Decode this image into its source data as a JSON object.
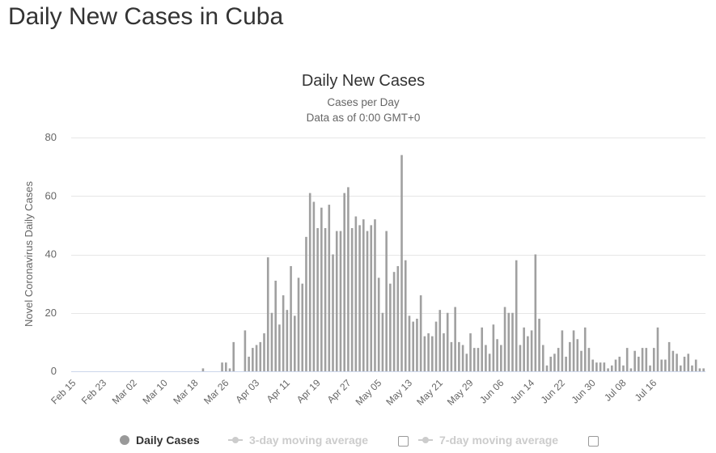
{
  "page": {
    "title": "Daily New Cases in Cuba"
  },
  "chart_data": {
    "type": "bar",
    "title": "Daily New Cases",
    "subtitle_lines": [
      "Cases per Day",
      "Data as of 0:00 GMT+0"
    ],
    "ylabel": "Novel Coronavirus Daily Cases",
    "xlabel": "",
    "ylim": [
      0,
      80
    ],
    "yticks": [
      0,
      20,
      40,
      60,
      80
    ],
    "grid": true,
    "bar_color": "#a0a0a0",
    "x_tick_labels": [
      "Feb 15",
      "Feb 23",
      "Mar 02",
      "Mar 10",
      "Mar 18",
      "Mar 26",
      "Apr 03",
      "Apr 11",
      "Apr 19",
      "Apr 27",
      "May 05",
      "May 13",
      "May 21",
      "May 29",
      "Jun 06",
      "Jun 14",
      "Jun 22",
      "Jun 30",
      "Jul 08",
      "Jul 16"
    ],
    "start_label": "Feb 15",
    "series": [
      {
        "name": "Daily Cases",
        "values": [
          0,
          0,
          0,
          0,
          0,
          0,
          0,
          0,
          0,
          0,
          0,
          0,
          0,
          0,
          0,
          0,
          0,
          0,
          0,
          0,
          0,
          0,
          0,
          0,
          0,
          0,
          0,
          0,
          0,
          0,
          0,
          0,
          0,
          0,
          1,
          0,
          0,
          0,
          0,
          3,
          3,
          1,
          10,
          0,
          0,
          14,
          5,
          8,
          9,
          10,
          13,
          39,
          20,
          31,
          16,
          26,
          21,
          36,
          19,
          32,
          30,
          46,
          61,
          58,
          49,
          56,
          49,
          57,
          40,
          48,
          48,
          61,
          63,
          49,
          53,
          50,
          52,
          48,
          50,
          52,
          32,
          20,
          48,
          30,
          34,
          36,
          74,
          38,
          19,
          17,
          18,
          26,
          12,
          13,
          12,
          17,
          21,
          13,
          20,
          10,
          22,
          10,
          9,
          6,
          13,
          8,
          8,
          15,
          9,
          6,
          16,
          11,
          9,
          22,
          20,
          20,
          38,
          9,
          15,
          12,
          14,
          40,
          18,
          9,
          2,
          5,
          6,
          8,
          14,
          5,
          10,
          14,
          11,
          7,
          15,
          8,
          4,
          3,
          3,
          3,
          1,
          2,
          4,
          5,
          2,
          8,
          1,
          7,
          5,
          8,
          8,
          2,
          8,
          15,
          4,
          4,
          10,
          7,
          6,
          2,
          5,
          6,
          2,
          4,
          1,
          1
        ]
      },
      {
        "name": "3-day moving average",
        "hidden": true
      },
      {
        "name": "7-day moving average",
        "hidden": true
      }
    ]
  },
  "legend": {
    "items": [
      {
        "label": "Daily Cases",
        "icon": "circle",
        "color": "#999999"
      },
      {
        "label": "3-day moving average",
        "icon": "line-marker",
        "color": "#cccccc"
      },
      {
        "label": "7-day moving average",
        "icon": "line-marker",
        "color": "#cccccc"
      }
    ]
  }
}
